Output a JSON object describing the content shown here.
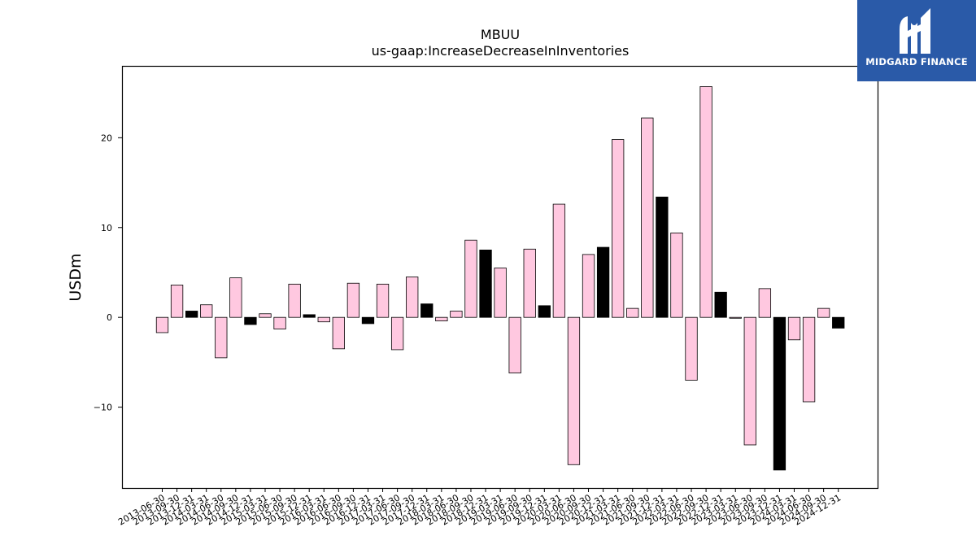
{
  "brand": {
    "name": "MIDGARD FINANCE"
  },
  "chart_data": {
    "type": "bar",
    "title": "MBUU",
    "subtitle": "us-gaap:IncreaseDecreaseInInventories",
    "ylabel": "USDm",
    "xlabel": "",
    "ylim": [
      -19,
      28
    ],
    "yticks": [
      -10,
      0,
      10,
      20
    ],
    "grid": false,
    "colors": {
      "quarterly": "#ffc8e0",
      "annual": "#000000",
      "edge": "#000000"
    },
    "categories": [
      "2013-06-30",
      "2013-09-30",
      "2013-12-31",
      "2014-03-31",
      "2014-06-30",
      "2014-09-30",
      "2014-12-31",
      "2015-03-31",
      "2015-06-30",
      "2015-09-30",
      "2015-12-31",
      "2016-03-31",
      "2016-06-30",
      "2016-09-30",
      "2016-12-31",
      "2017-03-31",
      "2017-06-30",
      "2017-09-30",
      "2017-12-31",
      "2018-03-31",
      "2018-06-30",
      "2018-09-30",
      "2018-12-31",
      "2019-03-31",
      "2019-06-30",
      "2019-09-30",
      "2019-12-31",
      "2020-03-31",
      "2020-06-30",
      "2020-09-30",
      "2020-12-31",
      "2021-03-31",
      "2021-06-30",
      "2021-09-30",
      "2021-12-31",
      "2022-03-31",
      "2022-06-30",
      "2022-09-30",
      "2022-12-31",
      "2023-03-31",
      "2023-06-30",
      "2023-09-30",
      "2023-12-31",
      "2024-03-31",
      "2024-06-30",
      "2024-09-30",
      "2024-12-31"
    ],
    "values": [
      -1.7,
      3.6,
      0.7,
      1.4,
      -4.5,
      4.4,
      -0.8,
      0.4,
      -1.3,
      3.7,
      0.3,
      -0.5,
      -3.5,
      3.8,
      -0.7,
      3.7,
      -3.6,
      4.5,
      1.5,
      -0.4,
      0.7,
      8.6,
      7.5,
      5.5,
      -6.2,
      7.6,
      1.3,
      12.6,
      -16.4,
      7.0,
      7.8,
      19.8,
      1.0,
      22.2,
      13.4,
      9.4,
      -7.0,
      25.7,
      2.8,
      -0.1,
      -14.2,
      3.2,
      -17.0,
      -2.5,
      -9.4,
      1.0,
      -1.2
    ],
    "annual": [
      false,
      false,
      true,
      false,
      false,
      false,
      true,
      false,
      false,
      false,
      true,
      false,
      false,
      false,
      true,
      false,
      false,
      false,
      true,
      false,
      false,
      false,
      true,
      false,
      false,
      false,
      true,
      false,
      false,
      false,
      true,
      false,
      false,
      false,
      true,
      false,
      false,
      false,
      true,
      false,
      false,
      false,
      true,
      false,
      false,
      false,
      true
    ]
  }
}
